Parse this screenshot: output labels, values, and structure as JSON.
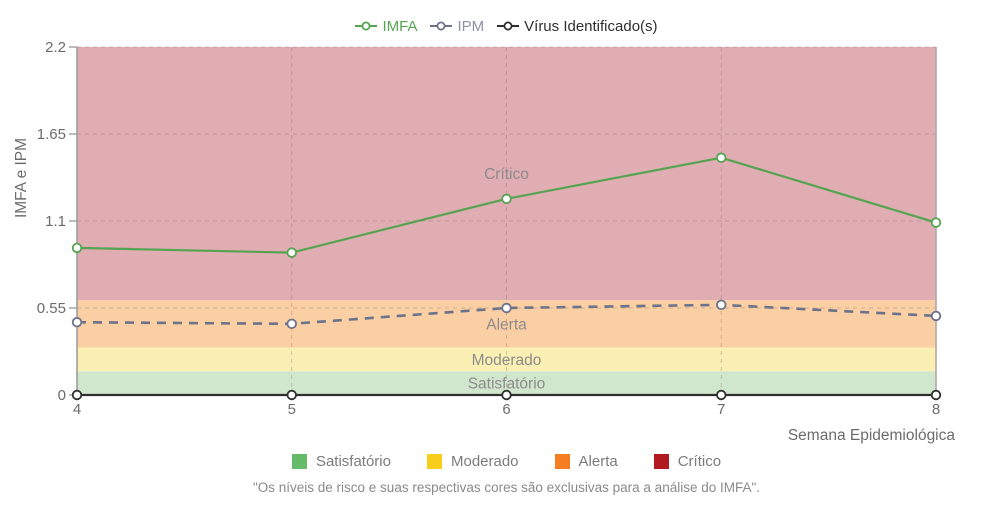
{
  "colors": {
    "axis_text": "#6b6b6b",
    "zone_label_text": "#8f8a8c",
    "grid_line": "rgba(125,105,105,0.35)",
    "y_axis_line": "#9e9e9e",
    "right_edge_line": "#b3a7a9",
    "x_axis_line": "#454545",
    "footnote_text": "#8a8a8a",
    "risk_legend_text": "#7b7b7b"
  },
  "chart_data": {
    "type": "line",
    "title": "",
    "x": [
      4,
      5,
      6,
      7,
      8
    ],
    "xtick_labels": [
      "4",
      "5",
      "6",
      "7",
      "8"
    ],
    "xlabel": "Semana Epidemiológica",
    "ylabel": "IMFA e IPM",
    "ylim": [
      0,
      2.2
    ],
    "yticks": [
      0,
      0.55,
      1.1,
      1.65,
      2.2
    ],
    "ytick_labels": [
      "0",
      "0.55",
      "1.1",
      "1.65",
      "2.2"
    ],
    "grid": "dashed",
    "legend_position": "top-center",
    "series": [
      {
        "name": "IMFA",
        "values": [
          0.93,
          0.9,
          1.24,
          1.5,
          1.09
        ],
        "color": "#56a452",
        "label_color": "#56a452",
        "style": "solid",
        "marker": "open-circle"
      },
      {
        "name": "IPM",
        "values": [
          0.46,
          0.45,
          0.55,
          0.57,
          0.5
        ],
        "color": "#6b7289",
        "label_color": "#8d92a3",
        "style": "dashed",
        "marker": "open-circle"
      },
      {
        "name": "Vírus Identificado(s)",
        "values": [
          0,
          0,
          0,
          0,
          0
        ],
        "color": "#2f2f2f",
        "label_color": "#2f2f2f",
        "style": "solid",
        "marker": "open-circle"
      }
    ],
    "zones": [
      {
        "label": "Satisfatório",
        "from": 0,
        "to": 0.15,
        "fill": "#d0e7cd",
        "legend_color": "#66bb6a"
      },
      {
        "label": "Moderado",
        "from": 0.15,
        "to": 0.3,
        "fill": "#faf0b4",
        "legend_color": "#f8cd1c"
      },
      {
        "label": "Alerta",
        "from": 0.3,
        "to": 0.6,
        "fill": "#facfa4",
        "legend_color": "#f57e20"
      },
      {
        "label": "Crítico",
        "from": 0.6,
        "to": 2.2,
        "fill": "#dfadb2",
        "legend_color": "#b11a20"
      }
    ]
  },
  "footnote": "\"Os níveis de risco e suas respectivas cores são exclusivas para a análise do IMFA\"."
}
